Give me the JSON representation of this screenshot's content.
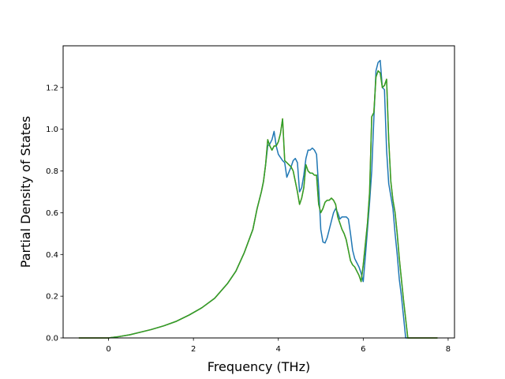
{
  "chart_data": {
    "type": "line",
    "title": "",
    "xlabel": "Frequency (THz)",
    "ylabel": "Partial Density of States",
    "xlim": [
      -1.07,
      8.15
    ],
    "ylim": [
      0.0,
      1.4
    ],
    "xticks": [
      0,
      2,
      4,
      6,
      8
    ],
    "xtick_labels": [
      "0",
      "2",
      "4",
      "6",
      "8"
    ],
    "yticks": [
      0.0,
      0.2,
      0.4,
      0.6,
      0.8,
      1.0,
      1.2
    ],
    "ytick_labels": [
      "0.0",
      "0.2",
      "0.4",
      "0.6",
      "0.8",
      "1.0",
      "1.2"
    ],
    "grid": false,
    "legend": "none",
    "series": [
      {
        "color": "#1f77b4",
        "x": [
          -0.7,
          -0.3,
          0.0,
          0.2,
          0.5,
          0.8,
          1.0,
          1.3,
          1.6,
          1.9,
          2.2,
          2.5,
          2.8,
          3.0,
          3.2,
          3.4,
          3.5,
          3.6,
          3.65,
          3.7,
          3.75,
          3.8,
          3.85,
          3.9,
          3.95,
          4.0,
          4.1,
          4.15,
          4.2,
          4.3,
          4.35,
          4.4,
          4.45,
          4.5,
          4.55,
          4.6,
          4.65,
          4.7,
          4.75,
          4.8,
          4.85,
          4.9,
          4.95,
          5.0,
          5.05,
          5.1,
          5.15,
          5.2,
          5.25,
          5.3,
          5.35,
          5.4,
          5.45,
          5.5,
          5.55,
          5.6,
          5.65,
          5.7,
          5.75,
          5.8,
          5.85,
          5.9,
          5.95,
          6.0,
          6.05,
          6.1,
          6.15,
          6.2,
          6.25,
          6.3,
          6.35,
          6.4,
          6.45,
          6.5,
          6.55,
          6.6,
          6.65,
          6.7,
          6.75,
          6.8,
          6.85,
          6.9,
          6.95,
          7.0,
          7.05,
          7.1,
          7.3,
          7.75
        ],
        "y": [
          0.0,
          0.0,
          0.0,
          0.005,
          0.015,
          0.03,
          0.04,
          0.058,
          0.08,
          0.11,
          0.145,
          0.19,
          0.26,
          0.32,
          0.41,
          0.52,
          0.62,
          0.7,
          0.75,
          0.83,
          0.92,
          0.93,
          0.95,
          0.99,
          0.92,
          0.88,
          0.85,
          0.84,
          0.77,
          0.82,
          0.85,
          0.86,
          0.84,
          0.7,
          0.72,
          0.78,
          0.86,
          0.9,
          0.9,
          0.91,
          0.9,
          0.88,
          0.72,
          0.52,
          0.46,
          0.455,
          0.48,
          0.52,
          0.56,
          0.6,
          0.62,
          0.6,
          0.57,
          0.58,
          0.58,
          0.58,
          0.57,
          0.5,
          0.42,
          0.38,
          0.36,
          0.34,
          0.31,
          0.27,
          0.39,
          0.52,
          0.65,
          0.8,
          1.05,
          1.28,
          1.32,
          1.33,
          1.2,
          1.19,
          0.9,
          0.74,
          0.68,
          0.62,
          0.5,
          0.4,
          0.28,
          0.2,
          0.1,
          0.0,
          0.0,
          0.0,
          0.0,
          0.0
        ]
      },
      {
        "color": "#ff7f0e",
        "x": [
          -0.7,
          -0.3,
          0.0,
          0.2,
          0.5,
          0.8,
          1.0,
          1.3,
          1.6,
          1.9,
          2.2,
          2.5,
          2.8,
          3.0,
          3.2,
          3.4,
          3.5,
          3.6,
          3.65,
          3.7,
          3.75,
          3.8,
          3.85,
          3.9,
          3.95,
          4.0,
          4.05,
          4.1,
          4.15,
          4.2,
          4.3,
          4.35,
          4.4,
          4.45,
          4.5,
          4.55,
          4.6,
          4.65,
          4.7,
          4.75,
          4.8,
          4.85,
          4.9,
          4.95,
          5.0,
          5.05,
          5.1,
          5.15,
          5.2,
          5.25,
          5.3,
          5.35,
          5.4,
          5.45,
          5.5,
          5.55,
          5.6,
          5.65,
          5.7,
          5.75,
          5.8,
          5.85,
          5.9,
          5.95,
          6.0,
          6.05,
          6.1,
          6.15,
          6.2,
          6.25,
          6.3,
          6.35,
          6.4,
          6.45,
          6.5,
          6.55,
          6.6,
          6.65,
          6.7,
          6.75,
          6.8,
          6.85,
          6.9,
          6.95,
          7.0,
          7.05,
          7.1,
          7.3,
          7.75
        ],
        "y": [
          0.0,
          0.0,
          0.0,
          0.005,
          0.015,
          0.03,
          0.04,
          0.058,
          0.08,
          0.11,
          0.145,
          0.19,
          0.26,
          0.32,
          0.41,
          0.52,
          0.62,
          0.7,
          0.75,
          0.83,
          0.95,
          0.92,
          0.9,
          0.92,
          0.92,
          0.94,
          0.98,
          1.05,
          0.85,
          0.84,
          0.82,
          0.8,
          0.75,
          0.7,
          0.64,
          0.67,
          0.72,
          0.83,
          0.8,
          0.79,
          0.79,
          0.78,
          0.78,
          0.64,
          0.6,
          0.62,
          0.65,
          0.66,
          0.66,
          0.67,
          0.66,
          0.64,
          0.58,
          0.55,
          0.52,
          0.5,
          0.47,
          0.42,
          0.37,
          0.35,
          0.34,
          0.32,
          0.3,
          0.27,
          0.35,
          0.45,
          0.55,
          0.7,
          1.06,
          1.08,
          1.25,
          1.28,
          1.27,
          1.2,
          1.21,
          1.24,
          0.95,
          0.75,
          0.66,
          0.6,
          0.5,
          0.38,
          0.28,
          0.18,
          0.09,
          0.0,
          0.0,
          0.0,
          0.0
        ]
      },
      {
        "color": "#2ca02c",
        "x": [
          -0.7,
          -0.3,
          0.0,
          0.2,
          0.5,
          0.8,
          1.0,
          1.3,
          1.6,
          1.9,
          2.2,
          2.5,
          2.8,
          3.0,
          3.2,
          3.4,
          3.5,
          3.6,
          3.65,
          3.7,
          3.75,
          3.8,
          3.85,
          3.9,
          3.95,
          4.0,
          4.05,
          4.1,
          4.15,
          4.2,
          4.3,
          4.35,
          4.4,
          4.45,
          4.5,
          4.55,
          4.6,
          4.65,
          4.7,
          4.75,
          4.8,
          4.85,
          4.9,
          4.95,
          5.0,
          5.05,
          5.1,
          5.15,
          5.2,
          5.25,
          5.3,
          5.35,
          5.4,
          5.45,
          5.5,
          5.55,
          5.6,
          5.65,
          5.7,
          5.75,
          5.8,
          5.85,
          5.9,
          5.95,
          6.0,
          6.05,
          6.1,
          6.15,
          6.2,
          6.25,
          6.3,
          6.35,
          6.4,
          6.45,
          6.5,
          6.55,
          6.6,
          6.65,
          6.7,
          6.75,
          6.8,
          6.85,
          6.9,
          6.95,
          7.0,
          7.05,
          7.1,
          7.3,
          7.75
        ],
        "y": [
          0.0,
          0.0,
          0.0,
          0.005,
          0.015,
          0.03,
          0.04,
          0.058,
          0.08,
          0.11,
          0.145,
          0.19,
          0.26,
          0.32,
          0.41,
          0.52,
          0.62,
          0.7,
          0.75,
          0.83,
          0.95,
          0.92,
          0.9,
          0.92,
          0.92,
          0.94,
          0.98,
          1.05,
          0.85,
          0.84,
          0.82,
          0.8,
          0.75,
          0.7,
          0.64,
          0.67,
          0.72,
          0.83,
          0.8,
          0.79,
          0.79,
          0.78,
          0.78,
          0.64,
          0.6,
          0.62,
          0.65,
          0.66,
          0.66,
          0.67,
          0.66,
          0.64,
          0.58,
          0.55,
          0.52,
          0.5,
          0.47,
          0.42,
          0.37,
          0.35,
          0.34,
          0.32,
          0.3,
          0.27,
          0.35,
          0.45,
          0.55,
          0.7,
          1.06,
          1.08,
          1.25,
          1.28,
          1.27,
          1.2,
          1.21,
          1.24,
          0.95,
          0.75,
          0.66,
          0.6,
          0.5,
          0.38,
          0.28,
          0.18,
          0.09,
          0.0,
          0.0,
          0.0,
          0.0
        ]
      }
    ]
  }
}
